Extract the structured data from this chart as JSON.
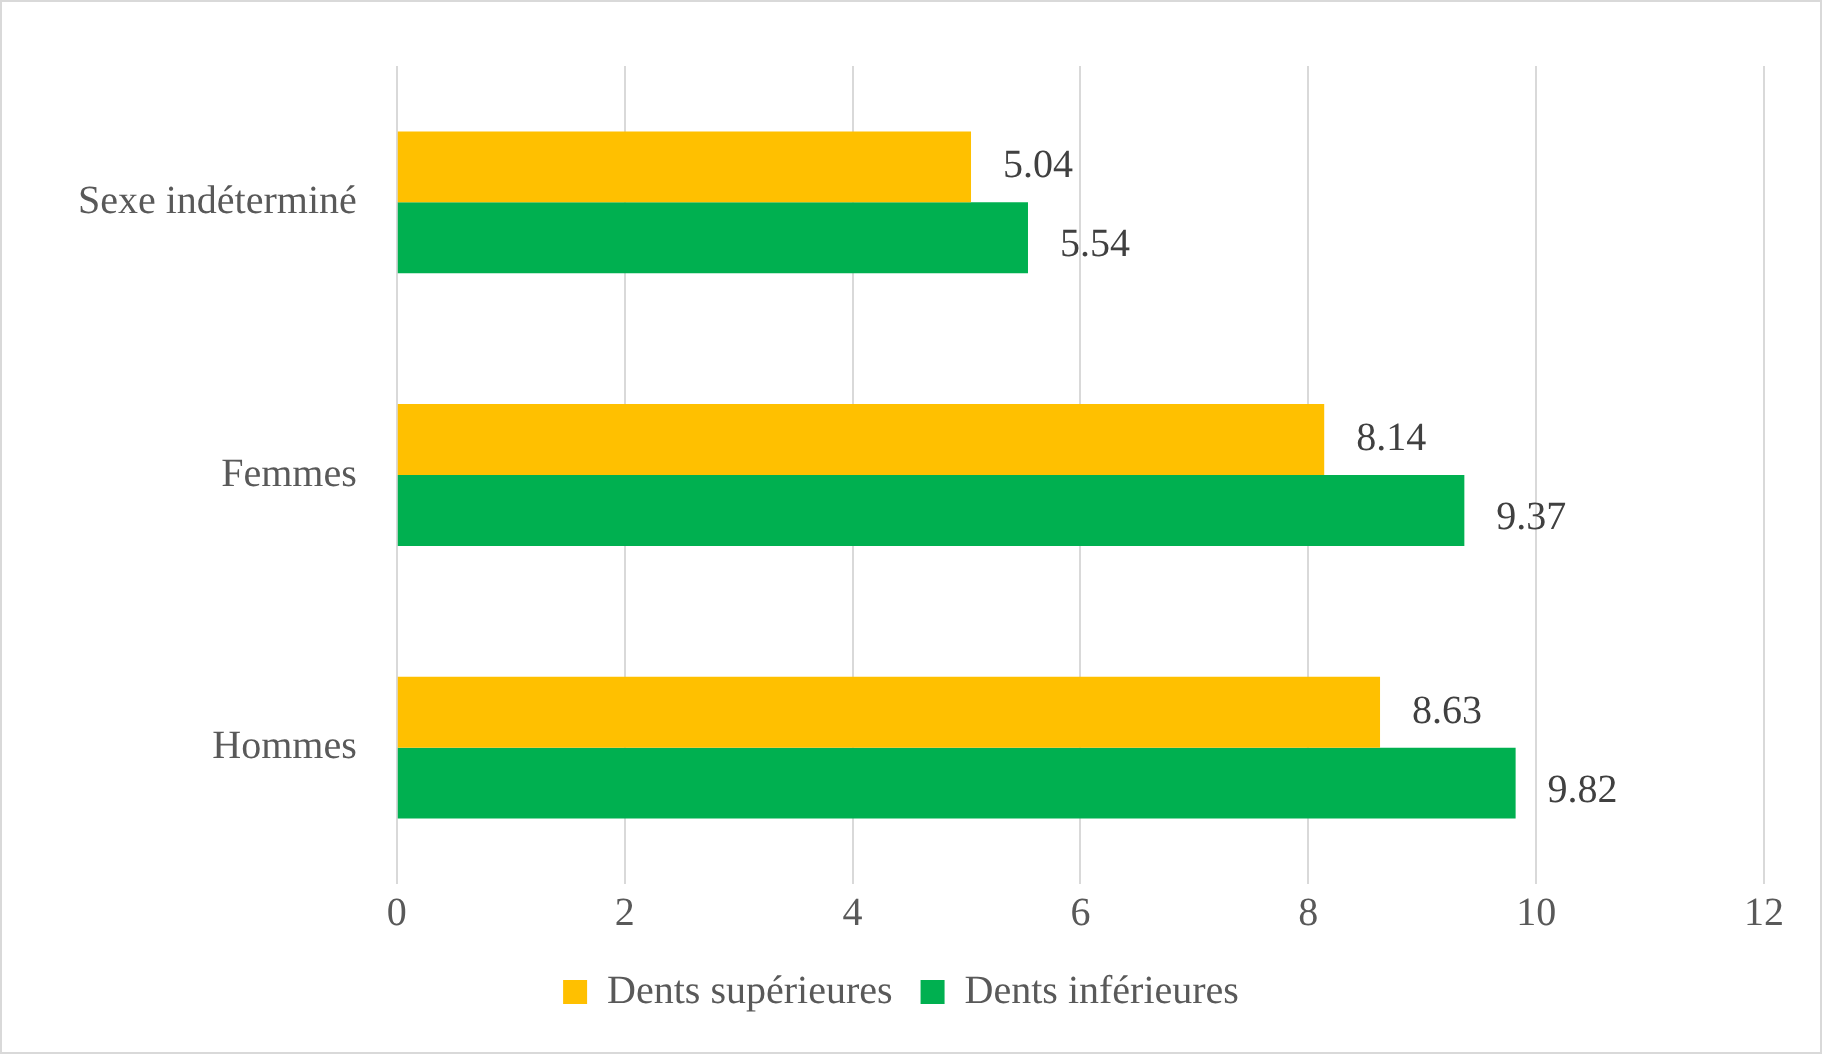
{
  "chart_data": {
    "type": "bar",
    "orientation": "horizontal",
    "categories": [
      "Sexe indéterminé",
      "Femmes",
      "Hommes"
    ],
    "series": [
      {
        "name": "Dents supérieures",
        "color": "#ffc000",
        "values": [
          5.04,
          8.14,
          8.63
        ]
      },
      {
        "name": "Dents inférieures",
        "color": "#00b050",
        "values": [
          5.54,
          9.37,
          9.82
        ]
      }
    ],
    "xlim": [
      0,
      12
    ],
    "xticks": [
      0,
      2,
      4,
      6,
      8,
      10,
      12
    ],
    "grid": "x",
    "legend": "bottom",
    "data_labels": true
  }
}
